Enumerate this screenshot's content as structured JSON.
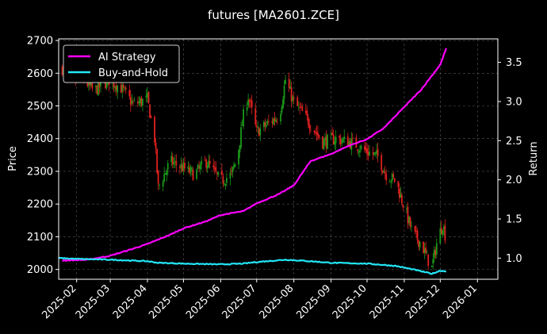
{
  "chart_data": {
    "type": "candlestick+line",
    "title": "futures [MA2601.ZCE]",
    "ylabel_left": "Price",
    "ylabel_right": "Return",
    "ylim_left": [
      1970,
      2705
    ],
    "ylim_right": [
      0.73,
      3.8
    ],
    "y_ticks_left": [
      2000,
      2100,
      2200,
      2300,
      2400,
      2500,
      2600,
      2700
    ],
    "y_ticks_right": [
      1.0,
      1.5,
      2.0,
      2.5,
      3.0,
      3.5
    ],
    "x_range": [
      "2025-01-17",
      "2026-01-18"
    ],
    "x_ticks": [
      "2025-02",
      "2025-03",
      "2025-04",
      "2025-05",
      "2025-06",
      "2025-07",
      "2025-08",
      "2025-09",
      "2025-10",
      "2025-11",
      "2025-12",
      "2026-01"
    ],
    "grid": true,
    "legend_position": "top-left",
    "colors": {
      "background": "#000000",
      "up_candle": "#1a9a1a",
      "down_candle": "#e02020",
      "ai_strategy": "#ff00ff",
      "buy_and_hold": "#22e5f5",
      "grid": "#555555"
    },
    "price_keypoints": [
      [
        "2025-01-20",
        2615
      ],
      [
        "2025-01-25",
        2560
      ],
      [
        "2025-02-05",
        2590
      ],
      [
        "2025-02-15",
        2545
      ],
      [
        "2025-02-28",
        2580
      ],
      [
        "2025-03-10",
        2555
      ],
      [
        "2025-03-20",
        2505
      ],
      [
        "2025-04-01",
        2520
      ],
      [
        "2025-04-07",
        2400
      ],
      [
        "2025-04-10",
        2250
      ],
      [
        "2025-04-20",
        2330
      ],
      [
        "2025-05-01",
        2310
      ],
      [
        "2025-05-10",
        2290
      ],
      [
        "2025-05-20",
        2330
      ],
      [
        "2025-06-01",
        2270
      ],
      [
        "2025-06-10",
        2290
      ],
      [
        "2025-06-15",
        2345
      ],
      [
        "2025-06-20",
        2470
      ],
      [
        "2025-06-24",
        2530
      ],
      [
        "2025-07-01",
        2420
      ],
      [
        "2025-07-10",
        2445
      ],
      [
        "2025-07-20",
        2470
      ],
      [
        "2025-07-25",
        2580
      ],
      [
        "2025-08-01",
        2510
      ],
      [
        "2025-08-10",
        2470
      ],
      [
        "2025-08-25",
        2390
      ],
      [
        "2025-09-05",
        2400
      ],
      [
        "2025-09-20",
        2385
      ],
      [
        "2025-10-01",
        2360
      ],
      [
        "2025-10-10",
        2345
      ],
      [
        "2025-10-17",
        2290
      ],
      [
        "2025-10-25",
        2270
      ],
      [
        "2025-11-01",
        2190
      ],
      [
        "2025-11-08",
        2110
      ],
      [
        "2025-11-15",
        2080
      ],
      [
        "2025-11-20",
        2035
      ],
      [
        "2025-11-24",
        2005
      ],
      [
        "2025-11-28",
        2080
      ],
      [
        "2025-12-03",
        2140
      ],
      [
        "2025-12-06",
        2090
      ]
    ],
    "series": [
      {
        "name": "AI Strategy",
        "color": "#ff00ff",
        "points": [
          [
            "2025-01-20",
            0.97
          ],
          [
            "2025-02-10",
            0.98
          ],
          [
            "2025-03-01",
            1.03
          ],
          [
            "2025-03-20",
            1.12
          ],
          [
            "2025-04-01",
            1.18
          ],
          [
            "2025-04-20",
            1.3
          ],
          [
            "2025-05-01",
            1.38
          ],
          [
            "2025-05-20",
            1.47
          ],
          [
            "2025-06-01",
            1.55
          ],
          [
            "2025-06-20",
            1.6
          ],
          [
            "2025-07-01",
            1.7
          ],
          [
            "2025-07-20",
            1.82
          ],
          [
            "2025-08-01",
            1.93
          ],
          [
            "2025-08-15",
            2.24
          ],
          [
            "2025-09-01",
            2.33
          ],
          [
            "2025-09-15",
            2.43
          ],
          [
            "2025-10-01",
            2.52
          ],
          [
            "2025-10-15",
            2.66
          ],
          [
            "2025-11-01",
            2.93
          ],
          [
            "2025-11-15",
            3.15
          ],
          [
            "2025-12-01",
            3.47
          ],
          [
            "2025-12-06",
            3.68
          ]
        ]
      },
      {
        "name": "Buy-and-Hold",
        "color": "#22e5f5",
        "points": [
          [
            "2025-01-17",
            1.0
          ],
          [
            "2025-02-01",
            0.99
          ],
          [
            "2025-03-01",
            0.98
          ],
          [
            "2025-04-01",
            0.96
          ],
          [
            "2025-04-10",
            0.94
          ],
          [
            "2025-05-01",
            0.93
          ],
          [
            "2025-06-01",
            0.92
          ],
          [
            "2025-06-20",
            0.93
          ],
          [
            "2025-07-01",
            0.95
          ],
          [
            "2025-07-25",
            0.98
          ],
          [
            "2025-08-15",
            0.96
          ],
          [
            "2025-09-01",
            0.94
          ],
          [
            "2025-10-01",
            0.93
          ],
          [
            "2025-10-25",
            0.9
          ],
          [
            "2025-11-10",
            0.85
          ],
          [
            "2025-11-24",
            0.8
          ],
          [
            "2025-12-01",
            0.84
          ],
          [
            "2025-12-06",
            0.83
          ]
        ]
      }
    ]
  }
}
